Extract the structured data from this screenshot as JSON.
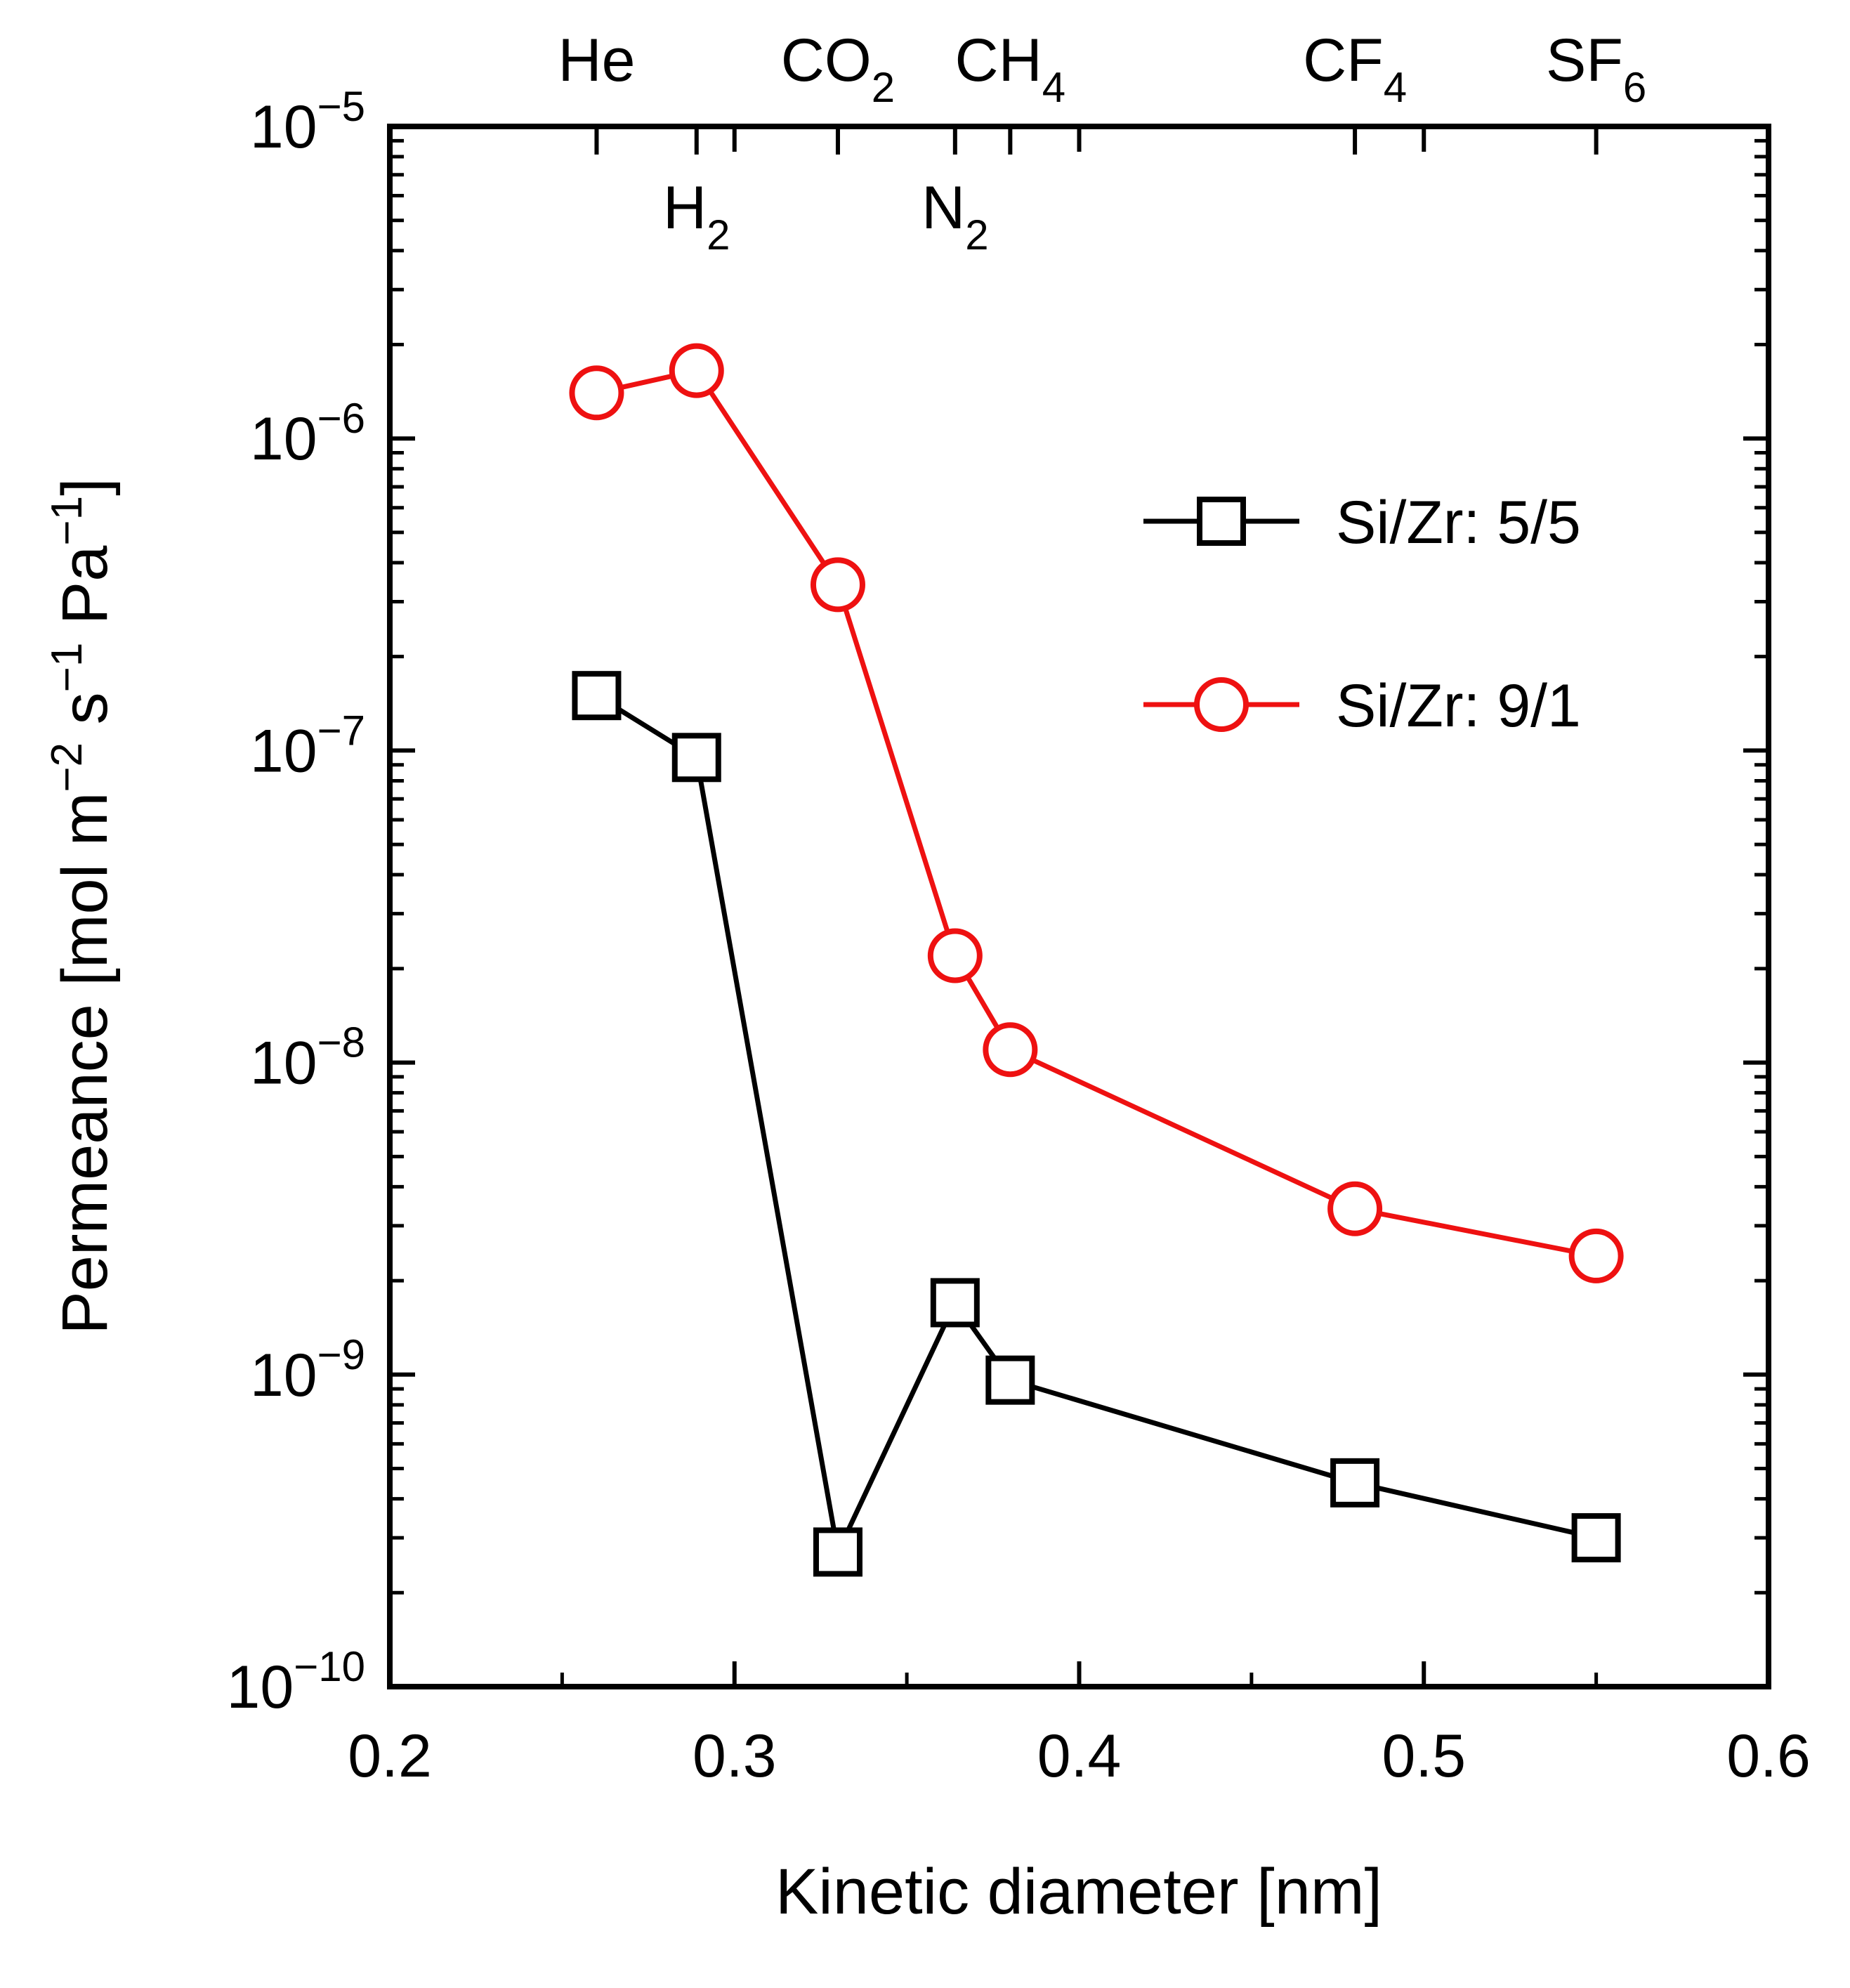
{
  "chart_data": {
    "type": "line",
    "xlabel": "Kinetic diameter [nm]",
    "ylabel": "Permeance [mol m",
    "ylabel_parts": {
      "p1": "Permeance [mol m",
      "sup1": "−2",
      "p2": " s",
      "sup2": "−1",
      "p3": " Pa",
      "sup3": "−1",
      "p4": "]"
    },
    "xscale": "linear",
    "yscale": "log",
    "xlim": [
      0.2,
      0.6
    ],
    "ylim": [
      1e-10,
      1e-05
    ],
    "x_ticks": [
      {
        "value": 0.2,
        "label": "0.2"
      },
      {
        "value": 0.3,
        "label": "0.3"
      },
      {
        "value": 0.4,
        "label": "0.4"
      },
      {
        "value": 0.5,
        "label": "0.5"
      },
      {
        "value": 0.6,
        "label": "0.6"
      }
    ],
    "y_ticks": [
      {
        "value": 1e-10,
        "base": "10",
        "exp": "−10"
      },
      {
        "value": 1e-09,
        "base": "10",
        "exp": "−9"
      },
      {
        "value": 1e-08,
        "base": "10",
        "exp": "−8"
      },
      {
        "value": 1e-07,
        "base": "10",
        "exp": "−7"
      },
      {
        "value": 1e-06,
        "base": "10",
        "exp": "−6"
      },
      {
        "value": 1e-05,
        "base": "10",
        "exp": "−5"
      }
    ],
    "top_axis_gases": [
      {
        "x": 0.26,
        "main": "He",
        "sub": "",
        "row": "upper"
      },
      {
        "x": 0.289,
        "main": "H",
        "sub": "2",
        "row": "lower"
      },
      {
        "x": 0.33,
        "main": "CO",
        "sub": "2",
        "row": "upper"
      },
      {
        "x": 0.364,
        "main": "N",
        "sub": "2",
        "row": "lower"
      },
      {
        "x": 0.38,
        "main": "CH",
        "sub": "4",
        "row": "upper"
      },
      {
        "x": 0.48,
        "main": "CF",
        "sub": "4",
        "row": "upper"
      },
      {
        "x": 0.55,
        "main": "SF",
        "sub": "6",
        "row": "upper"
      }
    ],
    "legend_position": "upper right",
    "grid": false,
    "series": [
      {
        "name": "Si/Zr: 5/5",
        "color": "#000000",
        "marker": "square",
        "x": [
          0.26,
          0.289,
          0.33,
          0.364,
          0.38,
          0.48,
          0.55
        ],
        "y": [
          1.5e-07,
          9.5e-08,
          2.7e-10,
          1.7e-09,
          9.6e-10,
          4.5e-10,
          3e-10
        ]
      },
      {
        "name": "Si/Zr: 9/1",
        "color": "#ee1111",
        "marker": "circle",
        "x": [
          0.26,
          0.289,
          0.33,
          0.364,
          0.38,
          0.48,
          0.55
        ],
        "y": [
          1.4e-06,
          1.65e-06,
          3.4e-07,
          2.2e-08,
          1.1e-08,
          3.4e-09,
          2.4e-09
        ]
      }
    ]
  }
}
